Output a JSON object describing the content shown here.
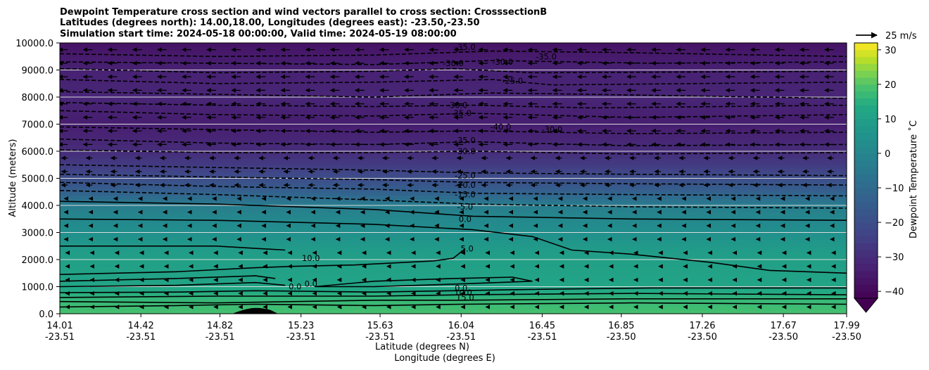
{
  "chart_data": {
    "type": "contour",
    "title_lines": [
      "Dewpoint Temperature cross section and wind vectors parallel to cross section: CrosssectionB",
      "Latitudes (degrees north): 14.00,18.00, Longitudes (degrees east): -23.50,-23.50",
      "Simulation start time: 2024-05-18 00:00:00, Valid time: 2024-05-19 08:00:00"
    ],
    "ylabel": "Altitude (meters)",
    "xlabel_lat": "Latitude (degrees N)",
    "xlabel_lon": "Longitude (degrees E)",
    "ylim": [
      0,
      10000
    ],
    "xlim": [
      14.01,
      17.99
    ],
    "y_ticks": [
      "0.0",
      "1000.0",
      "2000.0",
      "3000.0",
      "4000.0",
      "5000.0",
      "6000.0",
      "7000.0",
      "8000.0",
      "9000.0",
      "10000.0"
    ],
    "y_tick_values": [
      0,
      1000,
      2000,
      3000,
      4000,
      5000,
      6000,
      7000,
      8000,
      9000,
      10000
    ],
    "x_tick_values": [
      14.01,
      14.42,
      14.82,
      15.23,
      15.63,
      16.04,
      16.45,
      16.85,
      17.26,
      17.67,
      17.99
    ],
    "x_tick_lat": [
      "14.01",
      "14.42",
      "14.82",
      "15.23",
      "15.63",
      "16.04",
      "16.45",
      "16.85",
      "17.26",
      "17.67",
      "17.99"
    ],
    "x_tick_lon": [
      "-23.51",
      "-23.51",
      "-23.51",
      "-23.51",
      "-23.51",
      "-23.51",
      "-23.51",
      "-23.50",
      "-23.50",
      "-23.50",
      "-23.50"
    ],
    "colorbar": {
      "label": "Dewpoint Temperature ˚C",
      "ticks": [
        "30",
        "20",
        "10",
        "0",
        "−10",
        "−20",
        "−30",
        "−40"
      ],
      "tick_values": [
        30,
        20,
        10,
        0,
        -10,
        -20,
        -30,
        -40
      ],
      "range": [
        -42,
        32
      ],
      "extend": "min",
      "colormap": "viridis"
    },
    "wind_key_label": "25 m/s",
    "wind_direction": "mostly westward (negative along-section) in upper levels, weak near surface",
    "grid": "horizontal lines only",
    "field_levels": [
      {
        "alt": 0,
        "dewpoint": 19
      },
      {
        "alt": 500,
        "dewpoint": 17
      },
      {
        "alt": 1000,
        "dewpoint": 12
      },
      {
        "alt": 1500,
        "dewpoint": 11
      },
      {
        "alt": 2000,
        "dewpoint": 10
      },
      {
        "alt": 2500,
        "dewpoint": 8
      },
      {
        "alt": 3000,
        "dewpoint": 4
      },
      {
        "alt": 3500,
        "dewpoint": 1
      },
      {
        "alt": 4000,
        "dewpoint": -3
      },
      {
        "alt": 4500,
        "dewpoint": -13
      },
      {
        "alt": 5000,
        "dewpoint": -20
      },
      {
        "alt": 5500,
        "dewpoint": -26
      },
      {
        "alt": 6000,
        "dewpoint": -30
      },
      {
        "alt": 7000,
        "dewpoint": -34
      },
      {
        "alt": 8000,
        "dewpoint": -32
      },
      {
        "alt": 9000,
        "dewpoint": -33
      },
      {
        "alt": 10000,
        "dewpoint": -37
      }
    ],
    "contour_labels": [
      {
        "text": "-35.0",
        "lat": 16.06,
        "alt": 9850
      },
      {
        "text": "-35.0",
        "lat": 16.47,
        "alt": 9500
      },
      {
        "text": "-30.0",
        "lat": 16.0,
        "alt": 9250
      },
      {
        "text": "-30.0",
        "lat": 16.25,
        "alt": 9300
      },
      {
        "text": "-25.0",
        "lat": 16.3,
        "alt": 8600
      },
      {
        "text": "-30.0",
        "lat": 16.02,
        "alt": 7700
      },
      {
        "text": "-35.0",
        "lat": 16.04,
        "alt": 7400
      },
      {
        "text": "-40.0",
        "lat": 16.24,
        "alt": 6900
      },
      {
        "text": "-30.0",
        "lat": 16.5,
        "alt": 6800
      },
      {
        "text": "-35.0",
        "lat": 16.06,
        "alt": 6400
      },
      {
        "text": "-30.0",
        "lat": 16.06,
        "alt": 6000
      },
      {
        "text": "-25.0",
        "lat": 16.06,
        "alt": 5100
      },
      {
        "text": "-20.0",
        "lat": 16.06,
        "alt": 4750
      },
      {
        "text": "-15.0",
        "lat": 16.06,
        "alt": 4400
      },
      {
        "text": "-5.0",
        "lat": 16.06,
        "alt": 3950
      },
      {
        "text": "0.0",
        "lat": 16.06,
        "alt": 3500
      },
      {
        "text": "5.0",
        "lat": 16.07,
        "alt": 2400
      },
      {
        "text": "10.0",
        "lat": 15.28,
        "alt": 2050
      },
      {
        "text": "0.0",
        "lat": 15.2,
        "alt": 1000
      },
      {
        "text": "0.0",
        "lat": 15.28,
        "alt": 1100
      },
      {
        "text": "0.0",
        "lat": 16.04,
        "alt": 950
      },
      {
        "text": "10.0",
        "lat": 16.05,
        "alt": 780
      },
      {
        "text": "15.0",
        "lat": 16.06,
        "alt": 600
      }
    ],
    "contours": [
      {
        "style": "dashed",
        "points": [
          [
            14.01,
            9600
          ],
          [
            14.8,
            9500
          ],
          [
            15.6,
            9550
          ],
          [
            16.2,
            9700
          ],
          [
            16.8,
            9650
          ],
          [
            17.99,
            9500
          ]
        ]
      },
      {
        "style": "dashed",
        "points": [
          [
            14.01,
            9300
          ],
          [
            14.8,
            9250
          ],
          [
            15.6,
            9200
          ],
          [
            16.2,
            9350
          ],
          [
            17.0,
            9250
          ],
          [
            17.99,
            9300
          ]
        ]
      },
      {
        "style": "dashed",
        "points": [
          [
            14.01,
            9050
          ],
          [
            14.8,
            8900
          ],
          [
            15.6,
            8950
          ],
          [
            16.0,
            9050
          ],
          [
            16.4,
            8900
          ],
          [
            17.99,
            8950
          ]
        ]
      },
      {
        "style": "dashed",
        "points": [
          [
            14.01,
            8650
          ],
          [
            14.8,
            8500
          ],
          [
            15.6,
            8550
          ],
          [
            16.2,
            8650
          ],
          [
            16.5,
            8450
          ],
          [
            17.99,
            8550
          ]
        ]
      },
      {
        "style": "dashed",
        "points": [
          [
            14.01,
            8200
          ],
          [
            14.8,
            8100
          ],
          [
            15.6,
            8000
          ],
          [
            16.2,
            8150
          ],
          [
            16.7,
            8100
          ],
          [
            17.99,
            7950
          ]
        ]
      },
      {
        "style": "dashed",
        "points": [
          [
            14.01,
            7800
          ],
          [
            14.8,
            7700
          ],
          [
            15.6,
            7650
          ],
          [
            16.1,
            7700
          ],
          [
            16.7,
            7600
          ],
          [
            17.99,
            7700
          ]
        ]
      },
      {
        "style": "dashed",
        "points": [
          [
            14.01,
            7500
          ],
          [
            14.8,
            7350
          ],
          [
            15.6,
            7300
          ],
          [
            16.1,
            7400
          ],
          [
            16.9,
            7250
          ],
          [
            17.99,
            7350
          ]
        ]
      },
      {
        "style": "dashed",
        "points": [
          [
            14.01,
            6900
          ],
          [
            14.8,
            6800
          ],
          [
            15.6,
            6700
          ],
          [
            16.1,
            6750
          ],
          [
            16.9,
            6650
          ],
          [
            17.99,
            6700
          ]
        ]
      },
      {
        "style": "dashed",
        "points": [
          [
            14.01,
            6450
          ],
          [
            14.8,
            6300
          ],
          [
            15.6,
            6250
          ],
          [
            16.1,
            6350
          ],
          [
            16.9,
            6200
          ],
          [
            17.99,
            6250
          ]
        ]
      },
      {
        "style": "dashed",
        "points": [
          [
            14.01,
            6050
          ],
          [
            14.8,
            5950
          ],
          [
            15.6,
            5950
          ],
          [
            16.1,
            6000
          ],
          [
            16.9,
            5900
          ],
          [
            17.99,
            5950
          ]
        ]
      },
      {
        "style": "dashed",
        "points": [
          [
            14.01,
            5500
          ],
          [
            14.8,
            5400
          ],
          [
            15.6,
            5300
          ],
          [
            16.1,
            5200
          ],
          [
            16.9,
            5150
          ],
          [
            17.99,
            5100
          ]
        ]
      },
      {
        "style": "dashed",
        "points": [
          [
            14.01,
            5150
          ],
          [
            14.8,
            5050
          ],
          [
            15.6,
            4950
          ],
          [
            16.1,
            4850
          ],
          [
            16.9,
            4800
          ],
          [
            17.99,
            4750
          ]
        ]
      },
      {
        "style": "dashed",
        "points": [
          [
            14.01,
            4850
          ],
          [
            14.8,
            4700
          ],
          [
            15.6,
            4600
          ],
          [
            16.1,
            4450
          ],
          [
            16.9,
            4400
          ],
          [
            17.99,
            4350
          ]
        ]
      },
      {
        "style": "dashed",
        "points": [
          [
            14.01,
            4550
          ],
          [
            14.8,
            4400
          ],
          [
            15.6,
            4200
          ],
          [
            16.1,
            4050
          ],
          [
            16.9,
            3950
          ],
          [
            17.99,
            3900
          ]
        ]
      },
      {
        "style": "solid",
        "points": [
          [
            14.01,
            4150
          ],
          [
            14.8,
            4050
          ],
          [
            15.6,
            3850
          ],
          [
            16.1,
            3600
          ],
          [
            16.9,
            3500
          ],
          [
            17.99,
            3450
          ]
        ]
      },
      {
        "style": "solid",
        "points": [
          [
            14.01,
            3500
          ],
          [
            14.8,
            3450
          ],
          [
            15.6,
            3300
          ],
          [
            16.1,
            3100
          ],
          [
            16.4,
            2850
          ],
          [
            16.6,
            2350
          ],
          [
            16.9,
            2200
          ],
          [
            17.3,
            1900
          ],
          [
            17.6,
            1600
          ],
          [
            17.99,
            1500
          ]
        ]
      },
      {
        "style": "solid",
        "points": [
          [
            14.01,
            2500
          ],
          [
            14.8,
            2500
          ],
          [
            15.15,
            2350
          ]
        ]
      },
      {
        "style": "solid",
        "points": [
          [
            14.01,
            1450
          ],
          [
            14.6,
            1550
          ],
          [
            15.0,
            1700
          ],
          [
            15.2,
            1750
          ],
          [
            15.5,
            1800
          ],
          [
            15.9,
            1950
          ],
          [
            16.0,
            2050
          ],
          [
            16.06,
            2400
          ]
        ]
      },
      {
        "style": "solid",
        "points": [
          [
            14.01,
            1200
          ],
          [
            14.6,
            1300
          ],
          [
            15.0,
            1400
          ],
          [
            15.1,
            1300
          ]
        ]
      },
      {
        "style": "solid",
        "points": [
          [
            15.3,
            1000
          ],
          [
            15.6,
            1200
          ],
          [
            16.0,
            1300
          ],
          [
            16.3,
            1350
          ],
          [
            16.4,
            1200
          ],
          [
            16.04,
            1100
          ],
          [
            15.6,
            1000
          ],
          [
            15.3,
            1000
          ]
        ]
      },
      {
        "style": "solid",
        "points": [
          [
            14.01,
            1000
          ],
          [
            14.6,
            1050
          ],
          [
            15.0,
            1150
          ],
          [
            15.15,
            1050
          ]
        ]
      },
      {
        "style": "solid",
        "points": [
          [
            14.01,
            780
          ],
          [
            14.6,
            800
          ],
          [
            15.0,
            850
          ],
          [
            15.6,
            800
          ],
          [
            16.0,
            850
          ],
          [
            16.4,
            900
          ],
          [
            17.0,
            950
          ],
          [
            17.99,
            950
          ]
        ]
      },
      {
        "style": "solid",
        "points": [
          [
            14.01,
            600
          ],
          [
            14.8,
            650
          ],
          [
            15.6,
            650
          ],
          [
            16.04,
            700
          ],
          [
            16.9,
            750
          ],
          [
            17.99,
            700
          ]
        ]
      },
      {
        "style": "solid",
        "points": [
          [
            14.01,
            450
          ],
          [
            14.8,
            400
          ],
          [
            15.2,
            450
          ],
          [
            15.6,
            500
          ],
          [
            16.04,
            500
          ],
          [
            16.9,
            550
          ],
          [
            17.99,
            550
          ]
        ]
      },
      {
        "style": "solid",
        "points": [
          [
            14.01,
            250
          ],
          [
            14.6,
            300
          ],
          [
            15.0,
            350
          ],
          [
            15.6,
            300
          ],
          [
            16.04,
            350
          ],
          [
            16.9,
            400
          ],
          [
            17.99,
            350
          ]
        ]
      }
    ]
  }
}
